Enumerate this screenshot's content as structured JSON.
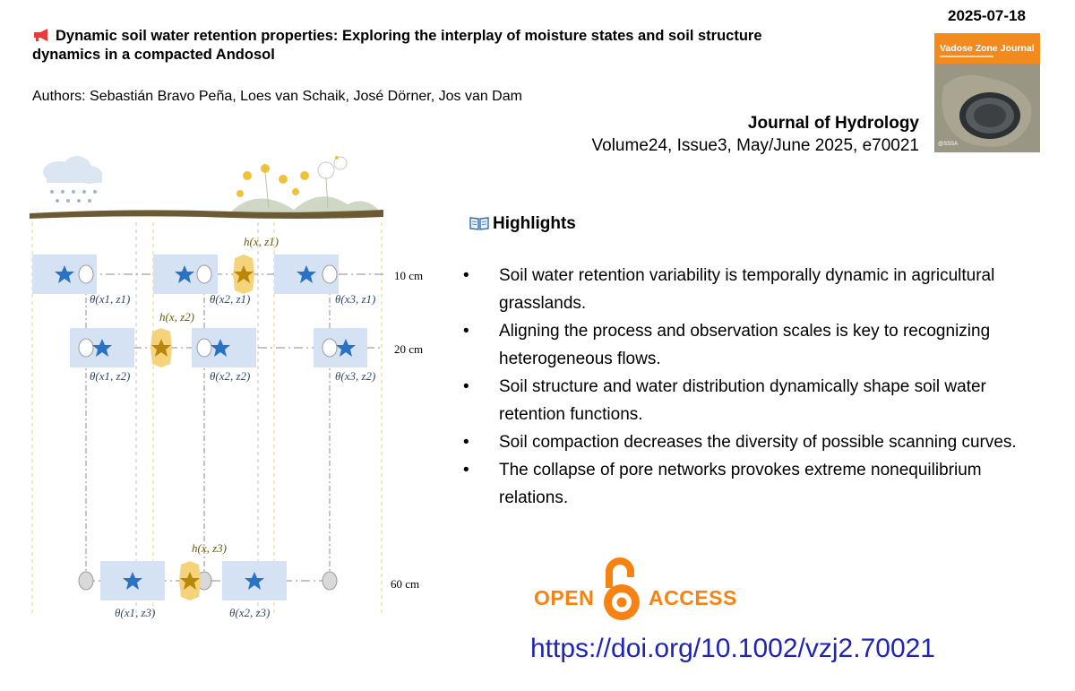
{
  "date": "2025-07-18",
  "paper": {
    "megaphone_icon": "megaphone-icon",
    "title": "Dynamic soil water retention properties: Exploring the interplay of moisture states and soil structure dynamics in a compacted Andosol",
    "authors": "Authors: Sebastián Bravo Peña, Loes van Schaik, José Dörner, Jos van Dam"
  },
  "journal": {
    "name": "Journal of Hydrology",
    "volume": "Volume24, Issue3, May/June 2025, e70021",
    "cover_title": "Vadose Zone Journal",
    "cover_publisher": "@SSSA"
  },
  "highlights": {
    "book_icon": "open-book-icon",
    "heading": "Highlights",
    "bullet": "•",
    "items": [
      "Soil water retention variability is temporally dynamic in agricultural grasslands.",
      "Aligning the process and observation scales is key to recognizing heterogeneous flows.",
      "Soil structure and water distribution dynamically shape soil water retention functions.",
      "Soil compaction decreases the diversity of possible scanning curves.",
      "The collapse of pore networks provokes extreme nonequilibrium relations."
    ]
  },
  "open_access": {
    "open": "OPEN",
    "access": "ACCESS",
    "color": "#f68212"
  },
  "doi": "https://doi.org/10.1002/vzj2.70021",
  "figure": {
    "depths": [
      "10 cm",
      "20 cm",
      "60 cm"
    ],
    "theta_labels": {
      "r1": [
        "θ(x1, z1)",
        "θ(x2, z1)",
        "θ(x3, z1)"
      ],
      "r2": [
        "θ(x1, z2)",
        "θ(x2, z2)",
        "θ(x3, z2)"
      ],
      "r3": [
        "θ(x1, z3)",
        "θ(x2, z3)"
      ]
    },
    "h_labels": [
      "h(x, z1)",
      "h(x, z2)",
      "h(x, z3)"
    ],
    "colors": {
      "box": "#d4e2f3",
      "star": "#2a73c2",
      "hex": "#f5d37a",
      "hex_star": "#b8860b",
      "ground": "#6b5a32"
    }
  }
}
